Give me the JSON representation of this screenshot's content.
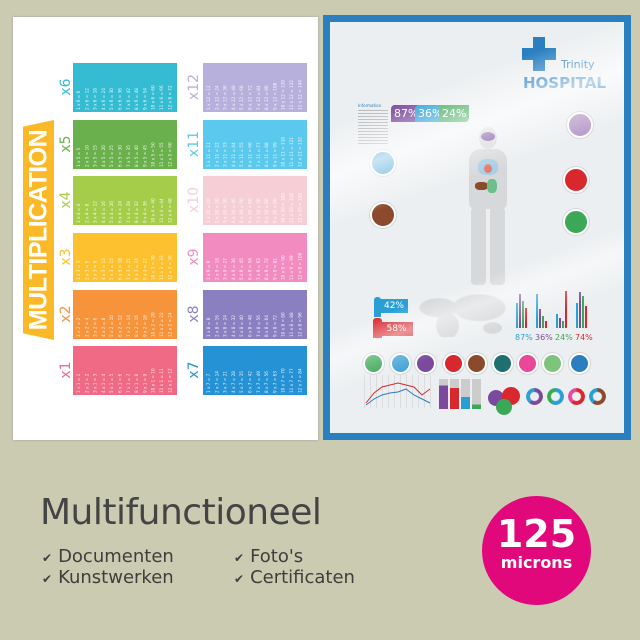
{
  "multiplication_poster": {
    "title": "MULTIPLICATION",
    "tables": [
      {
        "label": "x1",
        "n": 1,
        "color": "#f06a86"
      },
      {
        "label": "x2",
        "n": 2,
        "color": "#f7933a"
      },
      {
        "label": "x3",
        "n": 3,
        "color": "#fdc02f"
      },
      {
        "label": "x4",
        "n": 4,
        "color": "#a6cd4a"
      },
      {
        "label": "x5",
        "n": 5,
        "color": "#6ab04c"
      },
      {
        "label": "x6",
        "n": 6,
        "color": "#36bcd2"
      },
      {
        "label": "x7",
        "n": 7,
        "color": "#2492d4"
      },
      {
        "label": "x8",
        "n": 8,
        "color": "#8a7fc0"
      },
      {
        "label": "x9",
        "n": 9,
        "color": "#f28cc0"
      },
      {
        "label": "x10",
        "n": 10,
        "color": "#f6cfd6"
      },
      {
        "label": "x11",
        "n": 11,
        "color": "#5bc8ee"
      },
      {
        "label": "x12",
        "n": 12,
        "color": "#b8b0dc"
      }
    ]
  },
  "hospital_poster": {
    "name_line1": "Trinity",
    "name_line2": "HOSPITAL",
    "info_heading": "Information",
    "stats": [
      {
        "value": "87%",
        "color": "#7b4a9e"
      },
      {
        "value": "36%",
        "color": "#2a9fd6"
      },
      {
        "value": "24%",
        "color": "#3aa856"
      }
    ],
    "male_pct": "42%",
    "female_pct": "58%",
    "bar_labels": [
      "87%",
      "36%",
      "24%",
      "74%"
    ],
    "icon_colors": [
      "#3aa856",
      "#4aa6d8",
      "#7b4a9e",
      "#d9272e",
      "#8b4a2b",
      "#1f6e70",
      "#e9489a",
      "#7cc47c",
      "#2a7fc1"
    ],
    "brand_color": "#2a7fc1"
  },
  "footer": {
    "title": "Multifunctioneel",
    "features": [
      "Documenten",
      "Foto's",
      "Kunstwerken",
      "Certificaten"
    ],
    "badge_number": "125",
    "badge_unit": "microns",
    "badge_color": "#e0087a"
  }
}
